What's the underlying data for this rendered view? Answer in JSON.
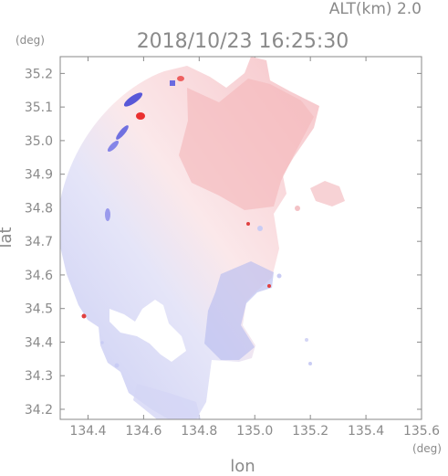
{
  "header": {
    "altitude_label": "ALT(km) 2.0",
    "timestamp": "2018/10/23 16:25:30"
  },
  "axes": {
    "x_label": "lon",
    "y_label": "lat",
    "x_unit": "(deg)",
    "y_unit": "(deg)",
    "x_ticks": [
      "134.4",
      "134.6",
      "134.8",
      "135.0",
      "135.2",
      "135.4",
      "135.6"
    ],
    "y_ticks": [
      "35.2",
      "35.1",
      "35.0",
      "34.9",
      "34.8",
      "34.7",
      "34.6",
      "34.5",
      "34.4",
      "34.3",
      "34.2"
    ]
  },
  "map": {
    "x_range": [
      134.3,
      135.6
    ],
    "y_range": [
      34.17,
      35.25
    ],
    "colors": {
      "approaching": "#8c8cff",
      "receding": "#ff8c8c",
      "neutral": "#ffffff",
      "frame": "#8a8a8a"
    }
  }
}
